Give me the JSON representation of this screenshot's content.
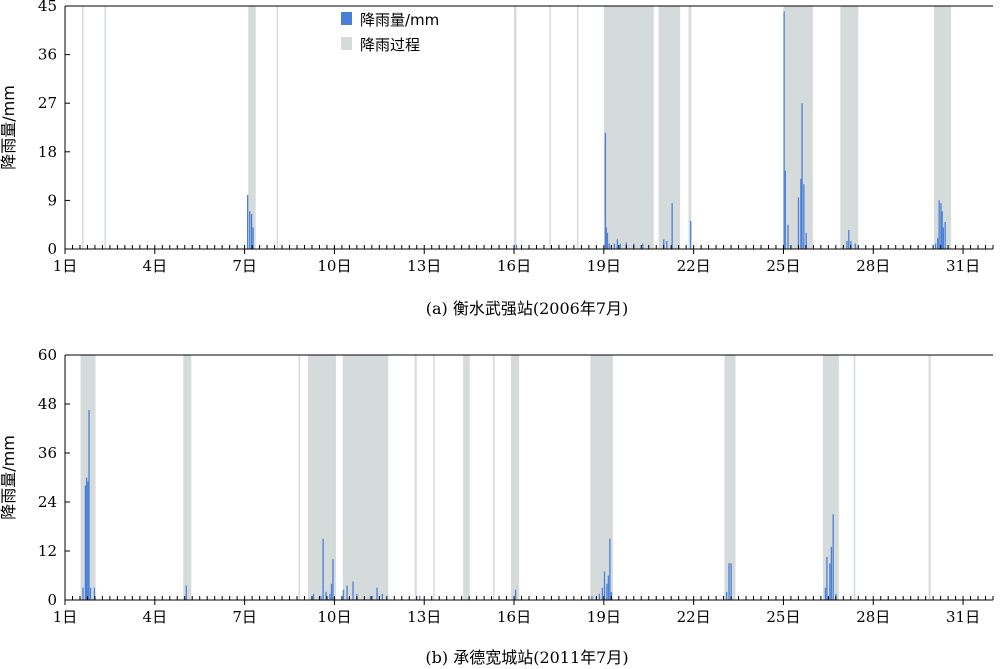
{
  "chart_data": [
    {
      "type": "bar",
      "caption": "(a) 衡水武强站(2006年7月)",
      "ylabel": "降雨量/mm",
      "ylim": [
        0,
        45
      ],
      "yticks": [
        0,
        9,
        18,
        27,
        36,
        45
      ],
      "xlim": [
        1,
        32
      ],
      "xticks": [
        1,
        4,
        7,
        10,
        13,
        16,
        19,
        22,
        25,
        28,
        31
      ],
      "xtick_labels": [
        "1日",
        "4日",
        "7日",
        "10日",
        "13日",
        "16日",
        "19日",
        "22日",
        "25日",
        "28日",
        "31日"
      ],
      "legend": {
        "position": "top-center",
        "entries": [
          "降雨量/mm",
          "降雨过程"
        ]
      },
      "colors": {
        "rain": "#4a7fd8",
        "process": "#d5dadb"
      },
      "rain_processes": [
        [
          1.57,
          1.62
        ],
        [
          2.32,
          2.37
        ],
        [
          7.12,
          7.37
        ],
        [
          8.07,
          8.12
        ],
        [
          16.0,
          16.08
        ],
        [
          17.18,
          17.23
        ],
        [
          18.1,
          18.15
        ],
        [
          19.0,
          20.67
        ],
        [
          20.83,
          21.55
        ],
        [
          21.83,
          21.92
        ],
        [
          25.0,
          25.98
        ],
        [
          26.9,
          27.5
        ],
        [
          30.03,
          30.6
        ]
      ],
      "rainfall": [
        [
          3.0,
          0.3
        ],
        [
          7.1,
          10
        ],
        [
          7.17,
          7
        ],
        [
          7.23,
          6.5
        ],
        [
          7.28,
          4
        ],
        [
          10.0,
          0.5
        ],
        [
          16.08,
          0.8
        ],
        [
          19.05,
          21.5
        ],
        [
          19.08,
          4
        ],
        [
          19.12,
          3
        ],
        [
          19.18,
          1
        ],
        [
          19.35,
          1
        ],
        [
          19.45,
          1.8
        ],
        [
          19.55,
          1
        ],
        [
          19.75,
          1.2
        ],
        [
          20.0,
          1
        ],
        [
          20.3,
          1
        ],
        [
          21.0,
          1.8
        ],
        [
          21.1,
          1.5
        ],
        [
          21.28,
          8.5
        ],
        [
          21.9,
          5.2
        ],
        [
          25.02,
          44
        ],
        [
          25.06,
          14.5
        ],
        [
          25.15,
          4.5
        ],
        [
          25.5,
          9.5
        ],
        [
          25.58,
          13
        ],
        [
          25.62,
          27
        ],
        [
          25.68,
          12
        ],
        [
          25.76,
          3
        ],
        [
          27.12,
          1.5
        ],
        [
          27.18,
          3.5
        ],
        [
          27.25,
          1.5
        ],
        [
          27.4,
          1
        ],
        [
          30.08,
          1
        ],
        [
          30.15,
          2
        ],
        [
          30.2,
          9
        ],
        [
          30.26,
          8.5
        ],
        [
          30.3,
          7
        ],
        [
          30.34,
          4
        ],
        [
          30.4,
          5
        ]
      ]
    },
    {
      "type": "bar",
      "caption": "(b) 承德宽城站(2011年7月)",
      "ylabel": "降雨量/mm",
      "ylim": [
        0,
        60
      ],
      "yticks": [
        0,
        12,
        24,
        36,
        48,
        60
      ],
      "xlim": [
        1,
        32
      ],
      "xticks": [
        1,
        4,
        7,
        10,
        13,
        16,
        19,
        22,
        25,
        28,
        31
      ],
      "xtick_labels": [
        "1日",
        "4日",
        "7日",
        "10日",
        "13日",
        "16日",
        "19日",
        "22日",
        "25日",
        "28日",
        "31日"
      ],
      "colors": {
        "rain": "#4a7fd8",
        "process": "#d5dadb"
      },
      "rain_processes": [
        [
          1.52,
          2.02
        ],
        [
          4.95,
          5.22
        ],
        [
          8.8,
          8.85
        ],
        [
          9.12,
          10.05
        ],
        [
          10.28,
          11.8
        ],
        [
          12.68,
          12.75
        ],
        [
          13.3,
          13.35
        ],
        [
          14.3,
          14.52
        ],
        [
          15.3,
          15.35
        ],
        [
          15.9,
          16.17
        ],
        [
          18.55,
          19.3
        ],
        [
          23.03,
          23.4
        ],
        [
          26.32,
          26.85
        ],
        [
          27.35,
          27.4
        ],
        [
          29.85,
          29.92
        ]
      ],
      "rainfall": [
        [
          1.6,
          3
        ],
        [
          1.68,
          28
        ],
        [
          1.72,
          30
        ],
        [
          1.76,
          29
        ],
        [
          1.8,
          46.5
        ],
        [
          1.85,
          3
        ],
        [
          1.98,
          3
        ],
        [
          5.05,
          3.5
        ],
        [
          12.85,
          1
        ],
        [
          9.3,
          1.5
        ],
        [
          9.55,
          1
        ],
        [
          9.62,
          15
        ],
        [
          9.72,
          2
        ],
        [
          9.85,
          1.5
        ],
        [
          9.9,
          4
        ],
        [
          9.95,
          10
        ],
        [
          10.3,
          2.5
        ],
        [
          10.42,
          3.5
        ],
        [
          10.62,
          4.5
        ],
        [
          10.75,
          1.5
        ],
        [
          11.2,
          1
        ],
        [
          11.42,
          3
        ],
        [
          11.6,
          1.5
        ],
        [
          16.05,
          2.5
        ],
        [
          18.6,
          1
        ],
        [
          18.85,
          1.5
        ],
        [
          18.95,
          3
        ],
        [
          19.02,
          7
        ],
        [
          19.1,
          4
        ],
        [
          19.15,
          6
        ],
        [
          19.2,
          15
        ],
        [
          19.25,
          2
        ],
        [
          23.1,
          2
        ],
        [
          23.18,
          9
        ],
        [
          23.25,
          9
        ],
        [
          26.4,
          3
        ],
        [
          26.45,
          10.5
        ],
        [
          26.55,
          9
        ],
        [
          26.6,
          13
        ],
        [
          26.66,
          21
        ],
        [
          26.75,
          1.5
        ]
      ]
    }
  ]
}
